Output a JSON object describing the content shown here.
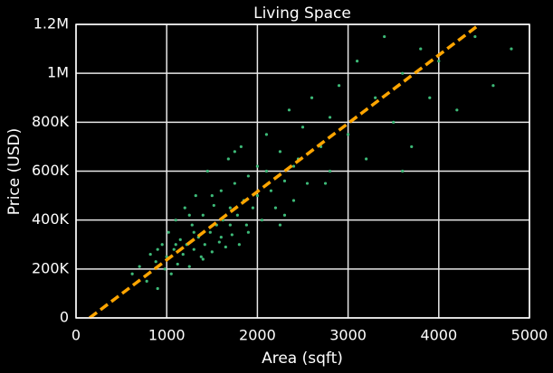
{
  "chart_data": {
    "type": "scatter",
    "title": "Living Space",
    "x_label": "Area (sqft)",
    "y_label": "Price (USD)",
    "xlim": [
      0,
      5000
    ],
    "ylim": [
      0,
      1200000
    ],
    "xticks": [
      0,
      1000,
      2000,
      3000,
      4000,
      5000
    ],
    "yticks": [
      0,
      {
        "value": 200000,
        "label": "200K"
      },
      {
        "value": 400000,
        "label": "400K"
      },
      {
        "value": 600000,
        "label": "600K"
      },
      {
        "value": 800000,
        "label": "800K"
      },
      {
        "value": 1000000,
        "label": "1M"
      },
      {
        "value": 1200000,
        "label": "1.2M"
      }
    ],
    "grid": true,
    "color": "#3dba78",
    "x": [
      620,
      700,
      780,
      820,
      880,
      900,
      950,
      980,
      1000,
      1020,
      1050,
      1080,
      1100,
      1120,
      1150,
      1180,
      1200,
      1220,
      1250,
      1280,
      1300,
      1320,
      1350,
      1380,
      1400,
      1420,
      1450,
      1480,
      1500,
      1520,
      1550,
      1580,
      1600,
      1620,
      1650,
      1680,
      1700,
      1720,
      1750,
      1780,
      1800,
      1820,
      1850,
      1880,
      1900,
      1950,
      2000,
      2050,
      2100,
      2150,
      2200,
      2250,
      2300,
      2350,
      2400,
      2450,
      2500,
      2550,
      2600,
      2700,
      2800,
      2900,
      3000,
      3100,
      3200,
      3300,
      3400,
      3500,
      3600,
      3700,
      3800,
      3900,
      4000,
      4200,
      4400,
      4600,
      4800,
      1300,
      1500,
      1700,
      1900,
      2100,
      2300,
      1100,
      1400,
      1600,
      2000,
      2400,
      2800,
      3200,
      3600,
      900,
      1250,
      1750,
      2250,
      2750
    ],
    "values": [
      180000,
      210000,
      150000,
      260000,
      230000,
      120000,
      300000,
      200000,
      250000,
      350000,
      180000,
      280000,
      400000,
      220000,
      320000,
      260000,
      450000,
      300000,
      210000,
      380000,
      280000,
      500000,
      330000,
      250000,
      420000,
      300000,
      600000,
      350000,
      270000,
      460000,
      380000,
      310000,
      520000,
      400000,
      290000,
      650000,
      450000,
      340000,
      550000,
      420000,
      300000,
      700000,
      480000,
      380000,
      580000,
      450000,
      620000,
      400000,
      750000,
      520000,
      450000,
      680000,
      560000,
      850000,
      480000,
      650000,
      780000,
      550000,
      900000,
      700000,
      600000,
      950000,
      750000,
      1050000,
      650000,
      900000,
      1150000,
      800000,
      1000000,
      700000,
      1100000,
      900000,
      1050000,
      850000,
      1150000,
      950000,
      1100000,
      350000,
      500000,
      380000,
      350000,
      600000,
      420000,
      300000,
      240000,
      330000,
      500000,
      620000,
      820000,
      850000,
      600000,
      280000,
      420000,
      680000,
      380000,
      550000
    ],
    "trend": {
      "x": [
        150,
        4450
      ],
      "values": [
        0,
        1200000
      ],
      "color": "#ffa500"
    }
  }
}
